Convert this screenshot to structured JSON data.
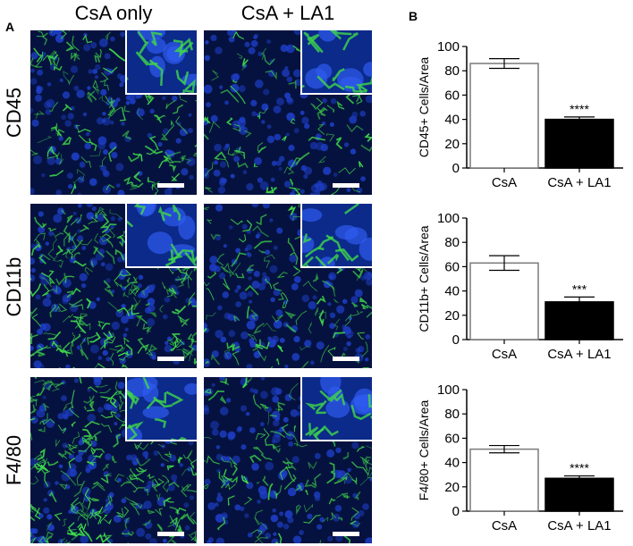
{
  "panel_a": {
    "letter": "A",
    "columns": [
      "CsA only",
      "CsA + LA1"
    ],
    "rows": [
      "CD45",
      "CD11b",
      "F4/80"
    ]
  },
  "panel_b": {
    "letter": "B"
  },
  "colors": {
    "tissue_bg": "#05123f",
    "nuclei": "#1e3fc8",
    "stain": "#3fd84a",
    "bar_control": "#ffffff",
    "bar_treated": "#000000"
  },
  "chart_data": [
    {
      "type": "bar",
      "categories": [
        "CsA",
        "CsA + LA1"
      ],
      "values": [
        86,
        40
      ],
      "errors": [
        4,
        2
      ],
      "significance": [
        "",
        "****"
      ],
      "ylabel": "CD45+ Cells/Area",
      "ylim": [
        0,
        100
      ],
      "yticks": [
        0,
        20,
        40,
        60,
        80,
        100
      ]
    },
    {
      "type": "bar",
      "categories": [
        "CsA",
        "CsA + LA1"
      ],
      "values": [
        63,
        31
      ],
      "errors": [
        6,
        4
      ],
      "significance": [
        "",
        "***"
      ],
      "ylabel": "CD11b+ Cells/Area",
      "ylim": [
        0,
        100
      ],
      "yticks": [
        0,
        20,
        40,
        60,
        80,
        100
      ]
    },
    {
      "type": "bar",
      "categories": [
        "CsA",
        "CsA + LA1"
      ],
      "values": [
        51,
        27
      ],
      "errors": [
        3,
        2
      ],
      "significance": [
        "",
        "****"
      ],
      "ylabel": "F4/80+ Cells/Area",
      "ylim": [
        0,
        100
      ],
      "yticks": [
        0,
        20,
        40,
        60,
        80,
        100
      ]
    }
  ]
}
